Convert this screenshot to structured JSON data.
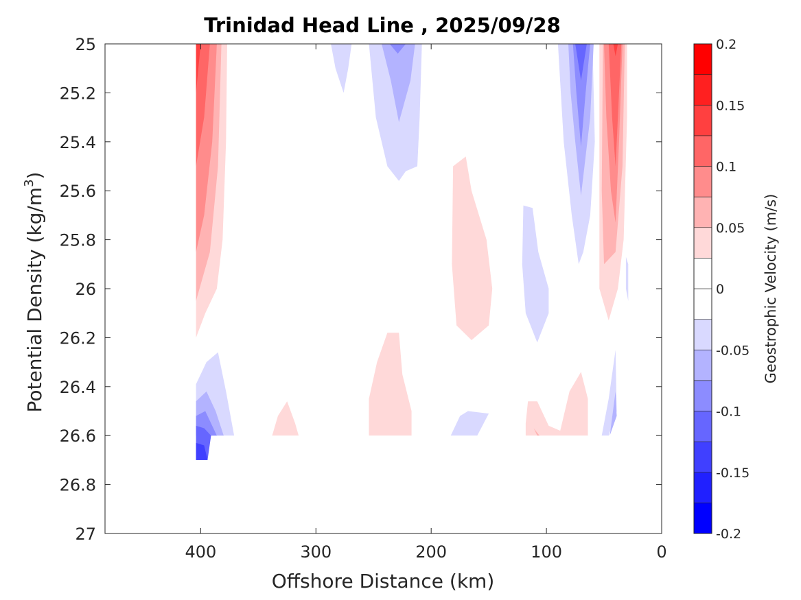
{
  "chart_data": {
    "type": "contourf",
    "title": "Trinidad Head Line , 2025/09/28",
    "xlabel": "Offshore Distance (km)",
    "ylabel": {
      "main": "Potential Density (kg/m",
      "sup": "3",
      "end": ")"
    },
    "colorbar_label": "Geostrophic Velocity (m/s)",
    "xlim": [
      483,
      0
    ],
    "ylim": [
      25,
      27
    ],
    "x_reversed": true,
    "y_reversed": true,
    "xticks": [
      400,
      300,
      200,
      100,
      0
    ],
    "xtick_labels": [
      "400",
      "300",
      "200",
      "100",
      "0"
    ],
    "yticks": [
      25,
      25.2,
      25.4,
      25.6,
      25.8,
      26,
      26.2,
      26.4,
      26.6,
      26.8,
      27
    ],
    "ytick_labels": [
      "25",
      "25.2",
      "25.4",
      "25.6",
      "25.8",
      "26",
      "26.2",
      "26.4",
      "26.6",
      "26.8",
      "27"
    ],
    "colorbar": {
      "range": [
        -0.2,
        0.2
      ],
      "levels": [
        -0.2,
        -0.175,
        -0.15,
        -0.125,
        -0.1,
        -0.075,
        -0.05,
        -0.025,
        0,
        0.025,
        0.05,
        0.075,
        0.1,
        0.125,
        0.15,
        0.175,
        0.2
      ],
      "colors": [
        "#0000ff",
        "#2020ff",
        "#4040ff",
        "#6666ff",
        "#8c8cff",
        "#b3b3ff",
        "#d9d9ff",
        "#ffffff",
        "#ffffff",
        "#ffd9d9",
        "#ffb3b3",
        "#ff8c8c",
        "#ff6666",
        "#ff4040",
        "#ff2020",
        "#ff0000"
      ],
      "ticks": [
        0.2,
        0.15,
        0.1,
        0.05,
        0,
        -0.05,
        -0.1,
        -0.15,
        -0.2
      ],
      "tick_labels": [
        "0.2",
        "0.15",
        "0.1",
        "0.05",
        "0",
        "-0.05",
        "-0.1",
        "-0.15",
        "-0.2"
      ]
    },
    "regions": [
      {
        "level": 0.0375,
        "pts": [
          [
            404,
            25
          ],
          [
            377,
            25
          ],
          [
            378,
            25.4
          ],
          [
            381,
            25.8
          ],
          [
            386,
            26.0
          ],
          [
            396,
            26.1
          ],
          [
            404,
            26.2
          ]
        ]
      },
      {
        "level": 0.0625,
        "pts": [
          [
            404,
            25
          ],
          [
            382,
            25
          ],
          [
            385,
            25.5
          ],
          [
            392,
            25.85
          ],
          [
            404,
            26.05
          ]
        ]
      },
      {
        "level": 0.0875,
        "pts": [
          [
            404,
            25
          ],
          [
            386,
            25
          ],
          [
            390,
            25.4
          ],
          [
            397,
            25.7
          ],
          [
            404,
            25.85
          ]
        ]
      },
      {
        "level": 0.1125,
        "pts": [
          [
            404,
            25
          ],
          [
            392,
            25
          ],
          [
            397,
            25.3
          ],
          [
            404,
            25.5
          ]
        ]
      },
      {
        "level": 0.1375,
        "pts": [
          [
            404,
            25
          ],
          [
            400,
            25
          ],
          [
            404,
            25.2
          ]
        ]
      },
      {
        "level": -0.0375,
        "pts": [
          [
            404,
            26.39
          ],
          [
            395,
            26.3
          ],
          [
            385,
            26.26
          ],
          [
            378,
            26.42
          ],
          [
            371,
            26.6
          ],
          [
            404,
            26.6
          ]
        ]
      },
      {
        "level": -0.0625,
        "pts": [
          [
            404,
            26.46
          ],
          [
            395,
            26.42
          ],
          [
            387,
            26.5
          ],
          [
            380,
            26.6
          ],
          [
            404,
            26.6
          ]
        ]
      },
      {
        "level": -0.0875,
        "pts": [
          [
            404,
            26.52
          ],
          [
            396,
            26.5
          ],
          [
            386,
            26.6
          ],
          [
            404,
            26.6
          ]
        ]
      },
      {
        "level": -0.1125,
        "pts": [
          [
            404,
            26.56
          ],
          [
            397,
            26.57
          ],
          [
            391,
            26.6
          ],
          [
            394,
            26.7
          ],
          [
            404,
            26.7
          ]
        ]
      },
      {
        "level": -0.1375,
        "pts": [
          [
            404,
            26.63
          ],
          [
            397,
            26.64
          ],
          [
            394,
            26.7
          ],
          [
            404,
            26.7
          ]
        ]
      },
      {
        "level": 0.0375,
        "pts": [
          [
            338,
            26.6
          ],
          [
            333,
            26.52
          ],
          [
            325,
            26.46
          ],
          [
            318,
            26.55
          ],
          [
            315,
            26.6
          ]
        ]
      },
      {
        "level": -0.0375,
        "pts": [
          [
            287,
            25
          ],
          [
            269,
            25
          ],
          [
            272,
            25.1
          ],
          [
            276,
            25.2
          ],
          [
            283,
            25.1
          ]
        ]
      },
      {
        "level": -0.0375,
        "pts": [
          [
            254,
            25
          ],
          [
            208,
            25
          ],
          [
            210,
            25.3
          ],
          [
            212,
            25.5
          ],
          [
            222,
            25.52
          ],
          [
            228,
            25.56
          ],
          [
            238,
            25.5
          ],
          [
            248,
            25.3
          ]
        ]
      },
      {
        "level": -0.0625,
        "pts": [
          [
            243,
            25
          ],
          [
            214,
            25
          ],
          [
            218,
            25.15
          ],
          [
            228,
            25.32
          ],
          [
            235,
            25.15
          ]
        ]
      },
      {
        "level": -0.0875,
        "pts": [
          [
            236,
            25
          ],
          [
            222,
            25
          ],
          [
            229,
            25.04
          ]
        ]
      },
      {
        "level": 0.0375,
        "pts": [
          [
            254,
            26.6
          ],
          [
            254,
            26.45
          ],
          [
            247,
            26.3
          ],
          [
            238,
            26.18
          ],
          [
            228,
            26.18
          ],
          [
            225,
            26.35
          ],
          [
            217,
            26.5
          ],
          [
            217,
            26.6
          ]
        ]
      },
      {
        "level": 0.0375,
        "pts": [
          [
            181,
            25.5
          ],
          [
            170,
            25.46
          ],
          [
            165,
            25.6
          ],
          [
            152,
            25.8
          ],
          [
            147,
            26.0
          ],
          [
            150,
            26.15
          ],
          [
            165,
            26.21
          ],
          [
            178,
            26.15
          ],
          [
            182,
            25.9
          ]
        ]
      },
      {
        "level": -0.0375,
        "pts": [
          [
            120,
            25.66
          ],
          [
            112,
            25.67
          ],
          [
            107,
            25.85
          ],
          [
            98,
            26.0
          ],
          [
            98,
            26.1
          ],
          [
            108,
            26.22
          ],
          [
            118,
            26.1
          ],
          [
            121,
            25.9
          ]
        ]
      },
      {
        "level": -0.0375,
        "pts": [
          [
            183,
            26.6
          ],
          [
            175,
            26.52
          ],
          [
            168,
            26.5
          ],
          [
            150,
            26.51
          ],
          [
            160,
            26.6
          ]
        ]
      },
      {
        "level": 0.0375,
        "pts": [
          [
            118,
            26.55
          ],
          [
            116,
            26.46
          ],
          [
            108,
            26.46
          ],
          [
            98,
            26.56
          ],
          [
            88,
            26.58
          ],
          [
            80,
            26.42
          ],
          [
            70,
            26.34
          ],
          [
            64,
            26.45
          ],
          [
            64,
            26.6
          ],
          [
            118,
            26.6
          ]
        ]
      },
      {
        "level": 0.0625,
        "pts": [
          [
            111,
            26.57
          ],
          [
            108,
            26.6
          ],
          [
            106,
            26.6
          ]
        ]
      },
      {
        "level": -0.0375,
        "pts": [
          [
            90,
            25
          ],
          [
            60,
            25
          ],
          [
            58,
            25.4
          ],
          [
            62,
            25.7
          ],
          [
            68,
            25.85
          ],
          [
            72,
            25.9
          ],
          [
            78,
            25.7
          ],
          [
            85,
            25.4
          ]
        ]
      },
      {
        "level": -0.0625,
        "pts": [
          [
            81,
            25
          ],
          [
            59,
            25
          ],
          [
            62,
            25.3
          ],
          [
            70,
            25.62
          ],
          [
            75,
            25.4
          ],
          [
            79,
            25.2
          ]
        ]
      },
      {
        "level": -0.0875,
        "pts": [
          [
            77,
            25
          ],
          [
            62,
            25
          ],
          [
            66,
            25.2
          ],
          [
            70,
            25.42
          ],
          [
            74,
            25.2
          ]
        ]
      },
      {
        "level": -0.1125,
        "pts": [
          [
            75,
            25
          ],
          [
            65,
            25
          ],
          [
            70,
            25.15
          ]
        ]
      },
      {
        "level": 0.0375,
        "pts": [
          [
            54,
            25
          ],
          [
            30,
            25
          ],
          [
            30,
            25.3
          ],
          [
            33,
            25.8
          ],
          [
            38,
            26.0
          ],
          [
            46,
            26.13
          ],
          [
            54,
            26.0
          ]
        ]
      },
      {
        "level": 0.0625,
        "pts": [
          [
            51,
            25
          ],
          [
            32,
            25
          ],
          [
            34,
            25.5
          ],
          [
            40,
            25.85
          ],
          [
            50,
            25.9
          ],
          [
            52,
            25.6
          ]
        ]
      },
      {
        "level": 0.0875,
        "pts": [
          [
            50,
            25
          ],
          [
            34,
            25
          ],
          [
            37,
            25.4
          ],
          [
            40,
            25.73
          ],
          [
            44,
            25.6
          ],
          [
            48,
            25.3
          ]
        ]
      },
      {
        "level": 0.1125,
        "pts": [
          [
            46,
            25
          ],
          [
            35,
            25
          ],
          [
            38,
            25.3
          ],
          [
            40,
            25.5
          ],
          [
            43,
            25.3
          ]
        ]
      },
      {
        "level": 0.1375,
        "pts": [
          [
            42,
            25
          ],
          [
            38,
            25
          ],
          [
            40,
            25.05
          ]
        ]
      },
      {
        "level": -0.0375,
        "pts": [
          [
            31,
            25.87
          ],
          [
            29,
            25.9
          ],
          [
            29,
            26.05
          ],
          [
            31,
            26.0
          ]
        ]
      },
      {
        "level": -0.0375,
        "pts": [
          [
            52,
            26.6
          ],
          [
            46,
            26.45
          ],
          [
            40,
            26.25
          ],
          [
            39,
            26.5
          ],
          [
            46,
            26.6
          ]
        ]
      },
      {
        "level": -0.0625,
        "pts": [
          [
            45,
            26.6
          ],
          [
            40,
            26.42
          ],
          [
            39,
            26.52
          ]
        ]
      }
    ]
  }
}
